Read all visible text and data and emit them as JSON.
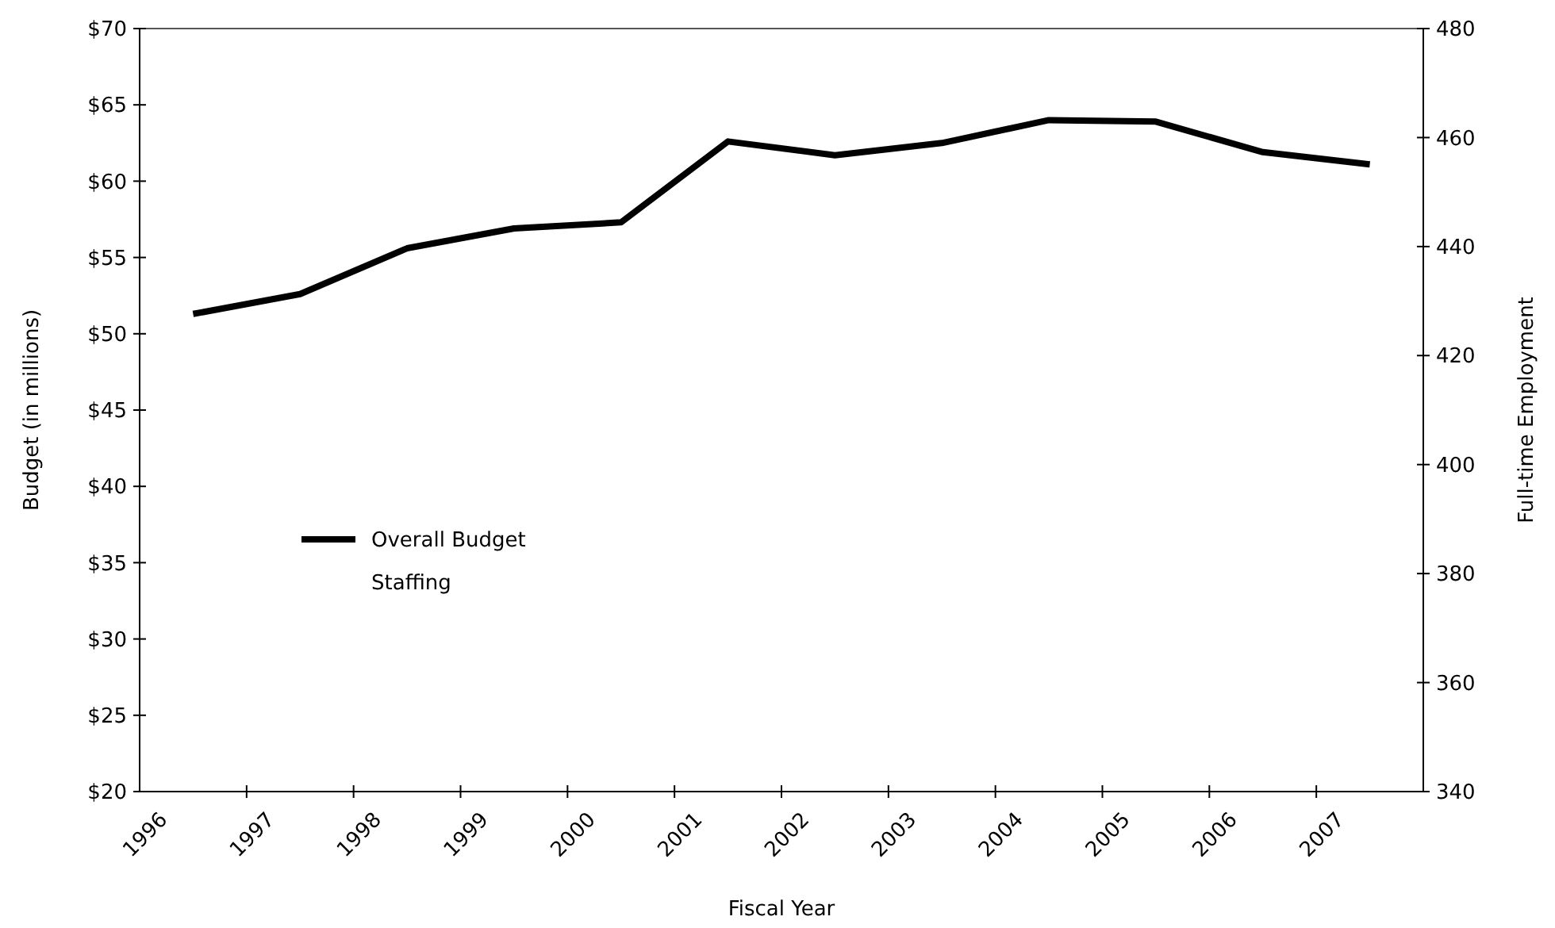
{
  "chart_data": {
    "type": "line",
    "xlabel": "Fiscal Year",
    "ylabel": "Budget (in millions)",
    "y2label": "Full-time Employment",
    "categories": [
      "1996",
      "1997",
      "1998",
      "1999",
      "2000",
      "2001",
      "2002",
      "2003",
      "2004",
      "2005",
      "2006",
      "2007"
    ],
    "series": [
      {
        "name": "Overall Budget",
        "color": "#000000",
        "values": [
          51.3,
          52.6,
          55.6,
          56.9,
          57.3,
          62.6,
          61.7,
          62.5,
          64.0,
          63.9,
          61.9,
          61.1
        ]
      }
    ],
    "annotations": [
      "Staffing"
    ],
    "ylim": [
      20,
      70
    ],
    "yticks": [
      {
        "value": 20,
        "label": "$20"
      },
      {
        "value": 25,
        "label": "$25"
      },
      {
        "value": 30,
        "label": "$30"
      },
      {
        "value": 35,
        "label": "$35"
      },
      {
        "value": 40,
        "label": "$40"
      },
      {
        "value": 45,
        "label": "$45"
      },
      {
        "value": 50,
        "label": "$50"
      },
      {
        "value": 55,
        "label": "$55"
      },
      {
        "value": 60,
        "label": "$60"
      },
      {
        "value": 65,
        "label": "$65"
      },
      {
        "value": 70,
        "label": "$70"
      }
    ],
    "y2lim": [
      340,
      480
    ],
    "y2ticks": [
      340,
      360,
      380,
      400,
      420,
      440,
      460,
      480
    ],
    "legend": "left",
    "grid": false,
    "marker": "none",
    "line_style": "solid"
  }
}
